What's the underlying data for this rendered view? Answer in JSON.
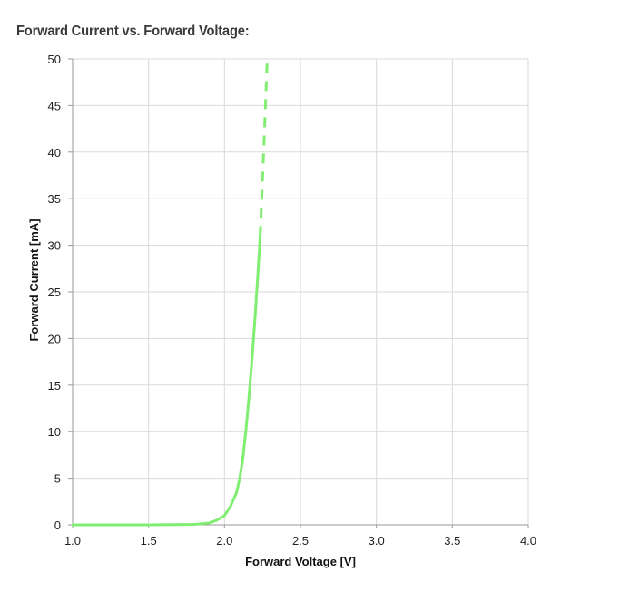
{
  "chart_data": {
    "type": "line",
    "title": "Forward Current vs. Forward Voltage:",
    "xlabel": "Forward Voltage [V]",
    "ylabel": "Forward Current [mA]",
    "xlim": [
      1.0,
      4.0
    ],
    "ylim": [
      0,
      50
    ],
    "x_ticks": [
      "1.0",
      "1.5",
      "2.0",
      "2.5",
      "3.0",
      "3.5",
      "4.0"
    ],
    "y_ticks": [
      "0",
      "5",
      "10",
      "15",
      "20",
      "25",
      "30",
      "35",
      "40",
      "45",
      "50"
    ],
    "grid": true,
    "legend": "none",
    "series": [
      {
        "style": "solid",
        "color": "#80ee70",
        "points": [
          [
            1.0,
            0.0
          ],
          [
            1.5,
            0.0
          ],
          [
            1.8,
            0.05
          ],
          [
            1.9,
            0.2
          ],
          [
            1.95,
            0.5
          ],
          [
            2.0,
            1.0
          ],
          [
            2.04,
            2.0
          ],
          [
            2.08,
            3.5
          ],
          [
            2.1,
            5.0
          ],
          [
            2.12,
            7.0
          ],
          [
            2.14,
            10.0
          ],
          [
            2.16,
            13.5
          ],
          [
            2.18,
            17.5
          ],
          [
            2.2,
            22.0
          ],
          [
            2.22,
            27.0
          ],
          [
            2.235,
            31.0
          ]
        ]
      },
      {
        "style": "dashed",
        "color": "#80ee70",
        "points": [
          [
            2.235,
            31.0
          ],
          [
            2.25,
            37.0
          ],
          [
            2.265,
            43.0
          ],
          [
            2.28,
            49.5
          ]
        ]
      }
    ]
  }
}
